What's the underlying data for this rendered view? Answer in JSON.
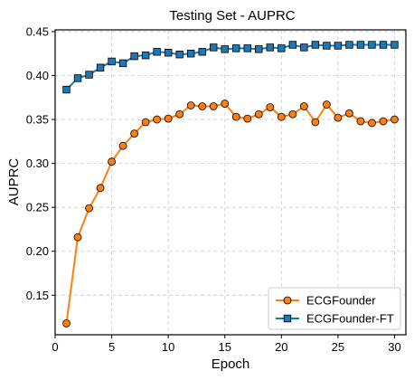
{
  "chart_data": {
    "type": "line",
    "title": "Testing Set - AUPRC",
    "xlabel": "Epoch",
    "ylabel": "AUPRC",
    "xlim": [
      0,
      31
    ],
    "ylim": [
      0.105,
      0.452
    ],
    "xticks": [
      0,
      5,
      10,
      15,
      20,
      25,
      30
    ],
    "yticks": [
      0.15,
      0.2,
      0.25,
      0.3,
      0.35,
      0.4,
      0.45
    ],
    "xtick_labels": [
      "0",
      "5",
      "10",
      "15",
      "20",
      "25",
      "30"
    ],
    "ytick_labels": [
      "0.15",
      "0.20",
      "0.25",
      "0.30",
      "0.35",
      "0.40",
      "0.45"
    ],
    "grid": true,
    "legend_position": "lower-right",
    "x": [
      1,
      2,
      3,
      4,
      5,
      6,
      7,
      8,
      9,
      10,
      11,
      12,
      13,
      14,
      15,
      16,
      17,
      18,
      19,
      20,
      21,
      22,
      23,
      24,
      25,
      26,
      27,
      28,
      29,
      30
    ],
    "series": [
      {
        "name": "ECGFounder",
        "color": "#ff7f0e",
        "marker": "circle",
        "values": [
          0.118,
          0.216,
          0.249,
          0.272,
          0.302,
          0.32,
          0.334,
          0.347,
          0.35,
          0.351,
          0.356,
          0.366,
          0.365,
          0.365,
          0.368,
          0.353,
          0.351,
          0.356,
          0.364,
          0.353,
          0.356,
          0.365,
          0.347,
          0.367,
          0.352,
          0.357,
          0.348,
          0.346,
          0.348,
          0.35
        ]
      },
      {
        "name": "ECGFounder-FT",
        "color": "#1f77b4",
        "marker": "square",
        "values": [
          0.384,
          0.397,
          0.401,
          0.409,
          0.416,
          0.414,
          0.422,
          0.423,
          0.427,
          0.426,
          0.424,
          0.425,
          0.427,
          0.432,
          0.43,
          0.431,
          0.431,
          0.43,
          0.432,
          0.431,
          0.435,
          0.432,
          0.435,
          0.434,
          0.434,
          0.435,
          0.435,
          0.435,
          0.435,
          0.435
        ]
      }
    ]
  }
}
